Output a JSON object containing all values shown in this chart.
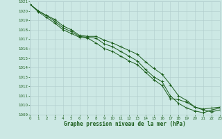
{
  "line1": [
    1020.7,
    1020.0,
    1019.5,
    1019.1,
    1018.4,
    1018.0,
    1017.4,
    1017.3,
    1017.3,
    1016.9,
    1016.6,
    1016.2,
    1015.8,
    1015.4,
    1014.6,
    1013.9,
    1013.3,
    1012.2,
    1011.0,
    1010.5,
    1009.8,
    1009.6,
    1009.7,
    1009.8
  ],
  "line2": [
    1020.7,
    1020.0,
    1019.5,
    1018.9,
    1018.2,
    1017.8,
    1017.3,
    1017.2,
    1017.1,
    1016.5,
    1016.2,
    1015.7,
    1015.2,
    1014.7,
    1013.8,
    1013.0,
    1012.5,
    1011.0,
    1010.2,
    1009.7,
    1009.4,
    1009.2,
    1009.5,
    1009.7
  ],
  "line3": [
    1020.7,
    1019.9,
    1019.3,
    1018.7,
    1018.0,
    1017.6,
    1017.2,
    1017.1,
    1016.6,
    1016.0,
    1015.7,
    1015.2,
    1014.7,
    1014.3,
    1013.5,
    1012.7,
    1012.1,
    1010.7,
    1010.6,
    1010.3,
    1009.8,
    1009.5,
    1009.3,
    1009.5
  ],
  "x": [
    0,
    1,
    2,
    3,
    4,
    5,
    6,
    7,
    8,
    9,
    10,
    11,
    12,
    13,
    14,
    15,
    16,
    17,
    18,
    19,
    20,
    21,
    22,
    23
  ],
  "line_color": "#1a5c1a",
  "bg_color": "#cce8e4",
  "grid_color": "#b0cccc",
  "xlabel": "Graphe pression niveau de la mer (hPa)",
  "ylim_min": 1009,
  "ylim_max": 1021,
  "xlim_min": 0,
  "xlim_max": 23
}
